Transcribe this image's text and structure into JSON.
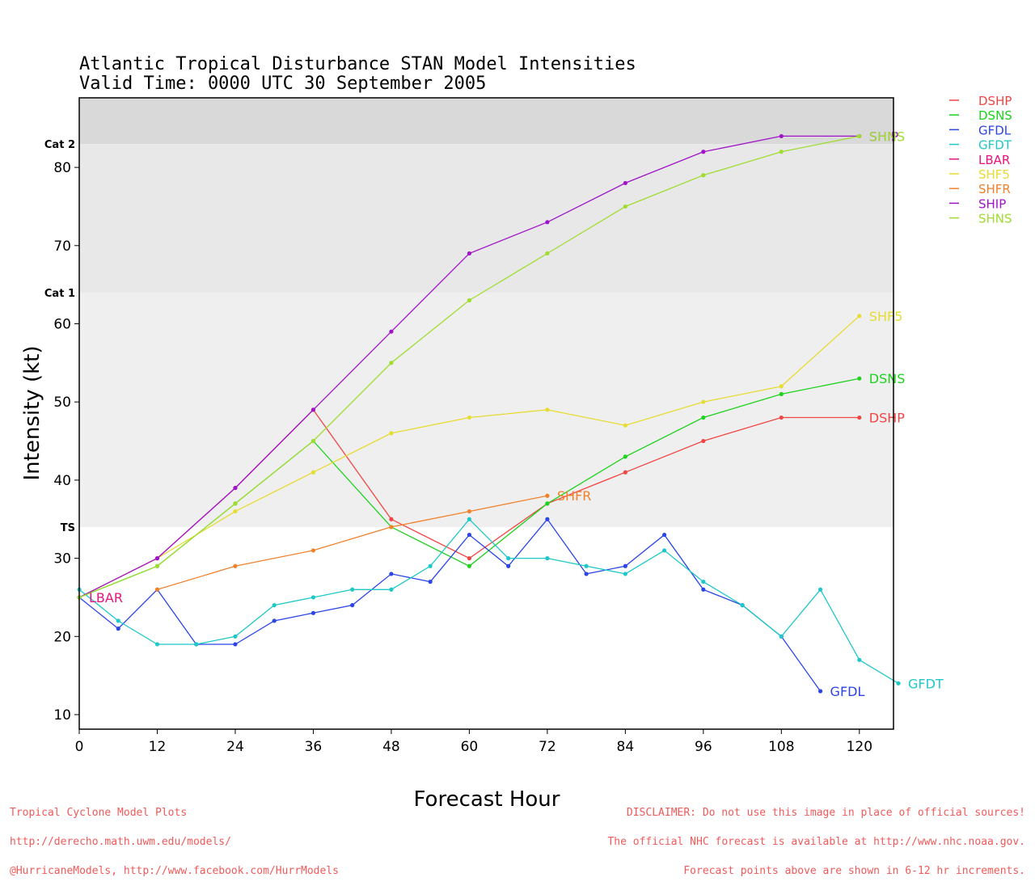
{
  "title": {
    "line1": "Atlantic Tropical Disturbance STAN Model Intensities",
    "line2": "Valid Time: 0000 UTC 30 September 2005"
  },
  "footer_left": [
    "Tropical Cyclone Model Plots",
    "http://derecho.math.uwm.edu/models/",
    "@HurricaneModels, http://www.facebook.com/HurrModels"
  ],
  "footer_right": [
    "DISCLAIMER: Do not use this image in place of official sources!",
    "The official NHC forecast is available at http://www.nhc.noaa.gov.",
    "Forecast points above are shown in 6-12 hr increments."
  ],
  "chart_data": {
    "type": "line",
    "xlabel": "Forecast Hour",
    "ylabel": "Intensity (kt)",
    "xlim": [
      0,
      126
    ],
    "ylim": [
      8,
      89
    ],
    "xticks": [
      0,
      12,
      24,
      36,
      48,
      60,
      72,
      84,
      96,
      108,
      120
    ],
    "yticks": [
      10,
      20,
      30,
      40,
      50,
      60,
      70,
      80
    ],
    "grid": false,
    "legend_position": "top-right outside",
    "bands": [
      {
        "label": "TS",
        "from": 34,
        "to": 64,
        "color": "#efefef"
      },
      {
        "label": "Cat 1",
        "from": 64,
        "to": 83,
        "color": "#e8e8e8"
      },
      {
        "label": "Cat 2",
        "from": 83,
        "to": 89,
        "color": "#d9d9d9"
      }
    ],
    "series": [
      {
        "name": "DSHP",
        "color": "#f04646",
        "end_label": "DSHP",
        "x": [
          0,
          12,
          24,
          36,
          48,
          60,
          72,
          84,
          96,
          108,
          120
        ],
        "y": [
          25,
          30,
          39,
          49,
          35,
          30,
          37,
          41,
          45,
          48,
          48
        ]
      },
      {
        "name": "DSNS",
        "color": "#1ed21e",
        "end_label": "DSNS",
        "x": [
          0,
          12,
          24,
          36,
          48,
          60,
          72,
          84,
          96,
          108,
          120
        ],
        "y": [
          25,
          29,
          37,
          45,
          34,
          29,
          37,
          43,
          48,
          51,
          53
        ]
      },
      {
        "name": "GFDL",
        "color": "#2b45e6",
        "end_label": "GFDL",
        "x": [
          0,
          6,
          12,
          18,
          24,
          30,
          36,
          42,
          48,
          54,
          60,
          66,
          72,
          78,
          84,
          90,
          96,
          102,
          108,
          114
        ],
        "y": [
          25,
          21,
          26,
          19,
          19,
          22,
          23,
          24,
          28,
          27,
          33,
          29,
          35,
          28,
          29,
          33,
          26,
          24,
          20,
          13
        ]
      },
      {
        "name": "GFDT",
        "color": "#1ec8c8",
        "end_label": "GFDT",
        "x": [
          0,
          6,
          12,
          18,
          24,
          30,
          36,
          42,
          48,
          54,
          60,
          66,
          72,
          78,
          84,
          90,
          96,
          102,
          108,
          114,
          120,
          126
        ],
        "y": [
          26,
          22,
          19,
          19,
          20,
          24,
          25,
          26,
          26,
          29,
          35,
          30,
          30,
          29,
          28,
          31,
          27,
          24,
          20,
          26,
          17,
          14
        ]
      },
      {
        "name": "LBAR",
        "color": "#e6147f",
        "end_label": "LBAR",
        "x": [
          0
        ],
        "y": [
          25
        ]
      },
      {
        "name": "SHF5",
        "color": "#e6dc32",
        "end_label": "SHF5",
        "x": [
          0,
          12,
          24,
          36,
          48,
          60,
          72,
          84,
          96,
          108,
          120
        ],
        "y": [
          25,
          30,
          36,
          41,
          46,
          48,
          49,
          47,
          50,
          52,
          61
        ]
      },
      {
        "name": "SHFR",
        "color": "#f0822d",
        "end_label": "SHFR",
        "x": [
          12,
          24,
          36,
          48,
          60,
          72
        ],
        "y": [
          26,
          29,
          31,
          34,
          36,
          38
        ]
      },
      {
        "name": "SHIP",
        "color": "#a014c8",
        "end_label": "SHIP",
        "x": [
          0,
          12,
          24,
          36,
          48,
          60,
          72,
          84,
          96,
          108,
          120
        ],
        "y": [
          25,
          30,
          39,
          49,
          59,
          69,
          73,
          78,
          82,
          84,
          84
        ]
      },
      {
        "name": "SHNS",
        "color": "#a0dc32",
        "end_label": "SHNS",
        "x": [
          0,
          12,
          24,
          36,
          48,
          60,
          72,
          84,
          96,
          108,
          120
        ],
        "y": [
          25,
          29,
          37,
          45,
          55,
          63,
          69,
          75,
          79,
          82,
          84
        ]
      }
    ]
  }
}
